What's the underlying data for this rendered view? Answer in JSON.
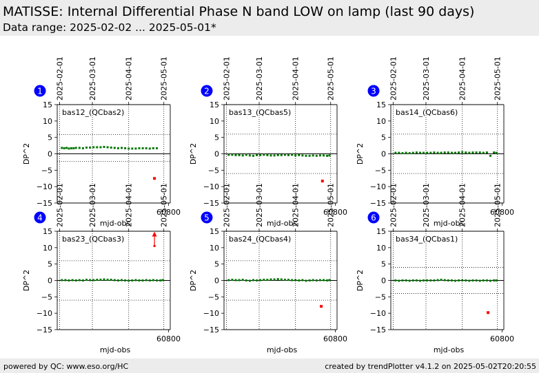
{
  "header": {
    "title": "MATISSE: Internal Differential Phase N band LOW on lamp (last 90 days)",
    "subtitle": "Data range: 2025-02-02 ... 2025-05-01*"
  },
  "footer": {
    "left": "powered by QC: www.eso.org/HC",
    "right": "created by trendPlotter v4.1.2 on 2025-05-02T20:20:55"
  },
  "colors": {
    "data_points": "#007700",
    "outliers": "#ff0000",
    "badge": "#0000ff",
    "header_bg": "#ececec"
  },
  "chart_data": [
    {
      "type": "scatter",
      "badge": "1",
      "label": "bas12_(QCbas2)",
      "xlabel": "mjd-obs",
      "ylabel": "DP^2",
      "ylim": [
        -15,
        15
      ],
      "yticks": [
        15,
        10,
        5,
        0,
        -5,
        -10,
        -15
      ],
      "xticks": [
        60800
      ],
      "date_ticks": [
        "2025-02-01",
        "2025-03-01",
        "2025-04-01",
        "2025-05-01"
      ],
      "reference_lines": [
        0
      ],
      "limits": [
        5.9,
        -2.3
      ],
      "series": [
        {
          "x": [
            60709,
            60711,
            60713,
            60715,
            60717,
            60719,
            60721,
            60724,
            60727,
            60730,
            60733,
            60736,
            60739,
            60742,
            60745,
            60748,
            60751,
            60754,
            60757,
            60760,
            60763,
            60766,
            60769,
            60772,
            60775,
            60778,
            60781,
            60784,
            60787,
            60790
          ],
          "y": [
            1.8,
            1.7,
            1.8,
            1.6,
            1.7,
            1.7,
            1.8,
            1.8,
            1.7,
            1.9,
            1.9,
            2.0,
            2.0,
            2.0,
            2.1,
            2.0,
            1.9,
            1.8,
            1.7,
            1.8,
            1.7,
            1.6,
            1.6,
            1.6,
            1.7,
            1.7,
            1.7,
            1.6,
            1.7,
            1.7
          ]
        }
      ],
      "outliers": [
        {
          "x": 60788,
          "y": -7.5
        }
      ]
    },
    {
      "type": "scatter",
      "badge": "2",
      "label": "bas13_(QCbas5)",
      "xlabel": "mjd-obs",
      "ylabel": "DP^2",
      "ylim": [
        -15,
        15
      ],
      "yticks": [
        15,
        10,
        5,
        0,
        -5,
        -10,
        -15
      ],
      "xticks": [
        60800
      ],
      "date_ticks": [
        "2025-02-01",
        "2025-03-01",
        "2025-04-01",
        "2025-05-01"
      ],
      "reference_lines": [
        0
      ],
      "limits": [
        6.0,
        -6.0
      ],
      "series": [
        {
          "x": [
            60709,
            60712,
            60715,
            60718,
            60721,
            60724,
            60727,
            60730,
            60733,
            60736,
            60739,
            60742,
            60745,
            60748,
            60751,
            60754,
            60757,
            60760,
            60763,
            60766,
            60769,
            60772,
            60775,
            60778,
            60781,
            60784,
            60787,
            60790,
            60793,
            60795
          ],
          "y": [
            -0.3,
            -0.3,
            -0.4,
            -0.4,
            -0.5,
            -0.3,
            -0.5,
            -0.6,
            -0.4,
            -0.4,
            -0.3,
            -0.4,
            -0.5,
            -0.5,
            -0.4,
            -0.4,
            -0.3,
            -0.4,
            -0.3,
            -0.5,
            -0.4,
            -0.5,
            -0.6,
            -0.6,
            -0.5,
            -0.6,
            -0.5,
            -0.5,
            -0.6,
            -0.5
          ]
        }
      ],
      "outliers": [
        {
          "x": 60789,
          "y": -8.3
        }
      ]
    },
    {
      "type": "scatter",
      "badge": "3",
      "label": "bas14_(QCbas6)",
      "xlabel": "mjd-obs",
      "ylabel": "DP^2",
      "ylim": [
        -15,
        15
      ],
      "yticks": [
        15,
        10,
        5,
        0,
        -5,
        -10,
        -15
      ],
      "xticks": [
        60800
      ],
      "date_ticks": [
        "2025-02-01",
        "2025-03-01",
        "2025-04-01",
        "2025-05-01"
      ],
      "reference_lines": [
        0
      ],
      "limits": [
        6.0,
        -6.0
      ],
      "series": [
        {
          "x": [
            60709,
            60712,
            60715,
            60718,
            60721,
            60724,
            60727,
            60730,
            60733,
            60736,
            60739,
            60742,
            60745,
            60748,
            60751,
            60754,
            60757,
            60760,
            60763,
            60766,
            60769,
            60772,
            60775,
            60778,
            60781,
            60784,
            60787,
            60790,
            60793,
            60795
          ],
          "y": [
            0.3,
            0.3,
            0.2,
            0.3,
            0.2,
            0.3,
            0.4,
            0.3,
            0.3,
            0.3,
            0.3,
            0.4,
            0.3,
            0.3,
            0.4,
            0.4,
            0.3,
            0.3,
            0.4,
            0.5,
            0.4,
            0.3,
            0.4,
            0.4,
            0.4,
            0.3,
            0.4,
            -0.6,
            0.4,
            0.3
          ]
        }
      ],
      "outliers": []
    },
    {
      "type": "scatter",
      "badge": "4",
      "label": "bas23_(QCbas3)",
      "xlabel": "mjd-obs",
      "ylabel": "DP^2",
      "ylim": [
        -15,
        15
      ],
      "yticks": [
        15,
        10,
        5,
        0,
        -5,
        -10,
        -15
      ],
      "xticks": [
        60800
      ],
      "date_ticks": [
        "2025-02-01",
        "2025-03-01",
        "2025-04-01",
        "2025-05-01"
      ],
      "reference_lines": [
        0
      ],
      "limits": [
        6.0,
        -6.0
      ],
      "series": [
        {
          "x": [
            60709,
            60712,
            60715,
            60718,
            60721,
            60724,
            60727,
            60730,
            60733,
            60736,
            60739,
            60742,
            60745,
            60748,
            60751,
            60754,
            60757,
            60760,
            60763,
            60766,
            60769,
            60772,
            60775,
            60778,
            60781,
            60784,
            60787,
            60790,
            60793,
            60795
          ],
          "y": [
            0.1,
            0.1,
            0.0,
            0.1,
            0.0,
            0.1,
            0.0,
            0.2,
            0.1,
            0.1,
            0.2,
            0.2,
            0.3,
            0.2,
            0.2,
            0.1,
            0.0,
            0.1,
            0.0,
            -0.1,
            0.0,
            0.1,
            0.0,
            0.0,
            0.1,
            0.0,
            0.1,
            0.0,
            0.0,
            0.1
          ]
        }
      ],
      "outliers": [
        {
          "x": 60788,
          "y": 13.6,
          "arrow": "up"
        }
      ]
    },
    {
      "type": "scatter",
      "badge": "5",
      "label": "bas24_(QCbas4)",
      "xlabel": "mjd-obs",
      "ylabel": "DP^2",
      "ylim": [
        -15,
        15
      ],
      "yticks": [
        15,
        10,
        5,
        0,
        -5,
        -10,
        -15
      ],
      "xticks": [
        60800
      ],
      "date_ticks": [
        "2025-02-01",
        "2025-03-01",
        "2025-04-01",
        "2025-05-01"
      ],
      "reference_lines": [
        0
      ],
      "limits": [
        6.0,
        -6.0
      ],
      "series": [
        {
          "x": [
            60709,
            60712,
            60715,
            60718,
            60721,
            60724,
            60727,
            60730,
            60733,
            60736,
            60739,
            60742,
            60745,
            60748,
            60751,
            60754,
            60757,
            60760,
            60763,
            60766,
            60769,
            60772,
            60775,
            60778,
            60781,
            60784,
            60787,
            60790,
            60793,
            60795
          ],
          "y": [
            0.1,
            0.2,
            0.1,
            0.1,
            0.2,
            0.0,
            -0.1,
            0.1,
            0.0,
            0.1,
            0.2,
            0.2,
            0.3,
            0.3,
            0.4,
            0.3,
            0.2,
            0.2,
            0.1,
            0.1,
            0.0,
            0.1,
            -0.1,
            0.0,
            0.1,
            0.0,
            0.1,
            0.1,
            0.0,
            0.1
          ]
        }
      ],
      "outliers": [
        {
          "x": 60788,
          "y": -7.9
        }
      ]
    },
    {
      "type": "scatter",
      "badge": "6",
      "label": "bas34_(QCbas1)",
      "xlabel": "mjd-obs",
      "ylabel": "DP^2",
      "ylim": [
        -15,
        15
      ],
      "yticks": [
        15,
        10,
        5,
        0,
        -5,
        -10,
        -15
      ],
      "xticks": [
        60800
      ],
      "date_ticks": [
        "2025-02-01",
        "2025-03-01",
        "2025-04-01",
        "2025-05-01"
      ],
      "reference_lines": [
        0
      ],
      "limits": [
        4.0,
        -4.0
      ],
      "series": [
        {
          "x": [
            60709,
            60712,
            60715,
            60718,
            60721,
            60724,
            60727,
            60730,
            60733,
            60736,
            60739,
            60742,
            60745,
            60748,
            60751,
            60754,
            60757,
            60760,
            60763,
            60766,
            60769,
            60772,
            60775,
            60778,
            60781,
            60784,
            60787,
            60790,
            60793,
            60795
          ],
          "y": [
            0.0,
            -0.1,
            0.0,
            0.0,
            -0.1,
            0.0,
            0.0,
            -0.1,
            0.0,
            0.0,
            0.0,
            0.0,
            0.1,
            0.2,
            0.1,
            0.0,
            0.0,
            -0.1,
            0.0,
            0.0,
            0.0,
            -0.1,
            0.0,
            0.0,
            -0.1,
            0.0,
            0.0,
            -0.1,
            0.0,
            0.0
          ]
        }
      ],
      "outliers": [
        {
          "x": 60788,
          "y": -9.8
        }
      ]
    }
  ]
}
